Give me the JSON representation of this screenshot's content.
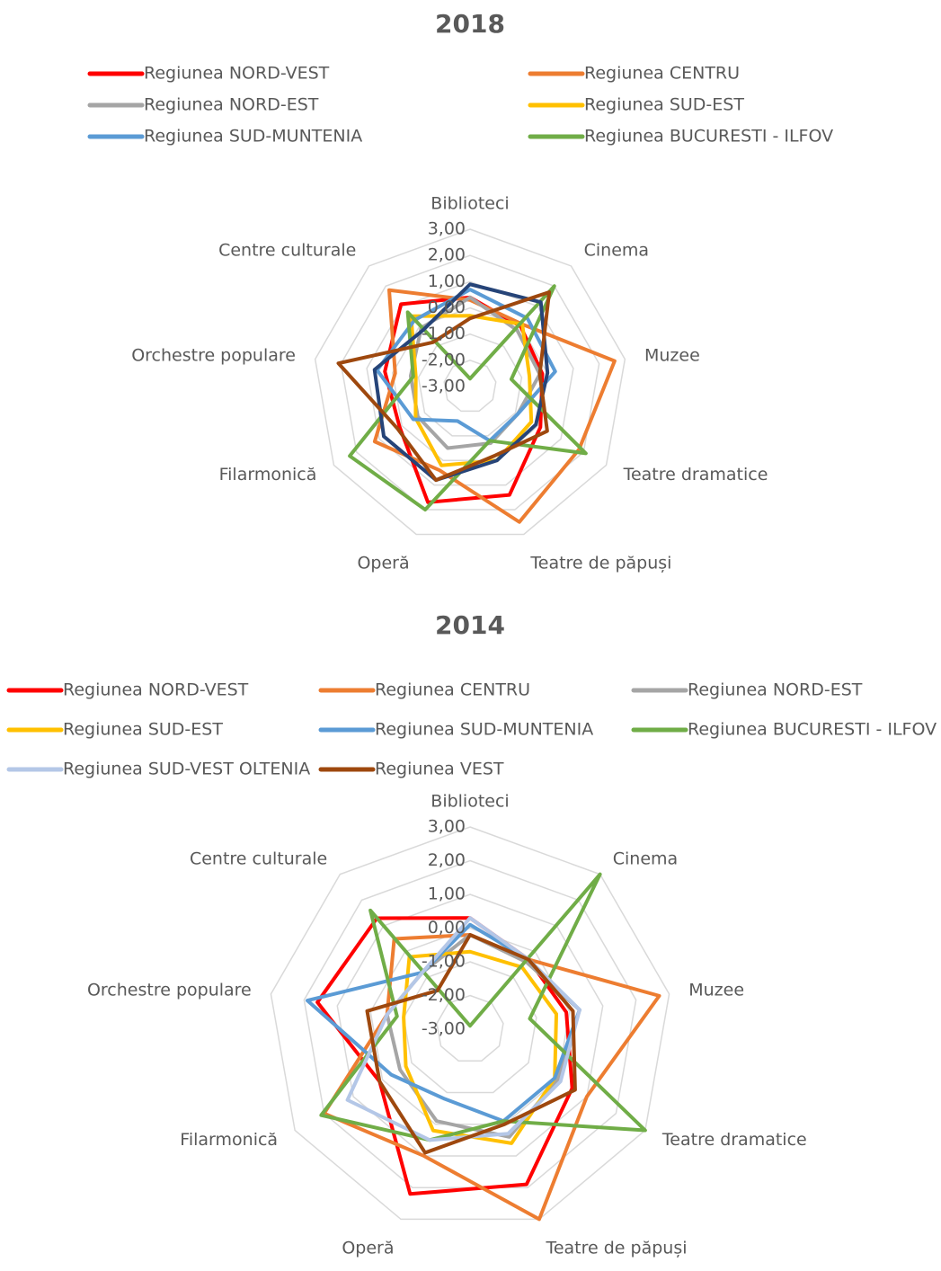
{
  "chart_data": [
    {
      "type": "radar",
      "title": "2018",
      "categories": [
        "Biblioteci",
        "Cinema",
        "Muzee",
        "Teatre dramatice",
        "Teatre de păpuși",
        "Operă",
        "Filarmonică",
        "Orchestre populare",
        "Centre culturale"
      ],
      "ylim": [
        -3,
        3
      ],
      "yticks": [
        {
          "value": 3,
          "label": "3,00"
        },
        {
          "value": 2,
          "label": "2,00"
        },
        {
          "value": 1,
          "label": "1,00"
        },
        {
          "value": 0,
          "label": "0,00"
        },
        {
          "value": -1,
          "label": "-1,00"
        },
        {
          "value": -2,
          "label": "-2,00"
        },
        {
          "value": -3,
          "label": "-3,00"
        }
      ],
      "series": [
        {
          "name": "Regiunea NORD-VEST",
          "color": "#ff0000",
          "values": [
            0.4,
            0,
            -0.2,
            0.1,
            1.4,
            1.7,
            0.1,
            0.3,
            1.1
          ]
        },
        {
          "name": "Regiunea CENTRU",
          "color": "#ed7d31",
          "values": [
            0.3,
            0.1,
            2.6,
            1.8,
            2.5,
            0.4,
            1.2,
            -0.1,
            1.8
          ]
        },
        {
          "name": "Regiunea NORD-EST",
          "color": "#a5a5a5",
          "values": [
            0.4,
            -0.2,
            -0.3,
            -0.9,
            -0.7,
            -0.5,
            -0.7,
            -0.7,
            -0.1
          ]
        },
        {
          "name": "Regiunea SUD-EST",
          "color": "#ffc000",
          "values": [
            -0.3,
            0.1,
            -0.7,
            -0.3,
            0,
            0.2,
            -0.6,
            -0.9,
            0.5
          ]
        },
        {
          "name": "Regiunea SUD-MUNTENIA",
          "color": "#5b9bd5",
          "values": [
            0.7,
            0.4,
            0.3,
            -0.9,
            -0.8,
            -1.6,
            -0.5,
            0.6,
            0.3
          ]
        },
        {
          "name": "Regiunea BUCURESTI - ILFOV",
          "color": "#70ad47",
          "values": [
            -2.7,
            2.0,
            -1.4,
            2.1,
            -0.8,
            2.0,
            2.3,
            -0.8,
            0.7
          ]
        },
        {
          "name": null,
          "color": "#264478",
          "values": [
            0.9,
            1.2,
            0,
            -0.1,
            0,
            0.8,
            0.8,
            0.7,
            -0.2
          ]
        },
        {
          "name": null,
          "color": "#9e480e",
          "values": [
            -0.4,
            1.7,
            -0.3,
            0.4,
            -0.2,
            0.8,
            0.2,
            2.1,
            -0.8
          ]
        }
      ]
    },
    {
      "type": "radar",
      "title": "2014",
      "categories": [
        "Biblioteci",
        "Cinema",
        "Muzee",
        "Teatre dramatice",
        "Teatre de păpuși",
        "Operă",
        "Filarmonică",
        "Orchestre populare",
        "Centre culturale"
      ],
      "ylim": [
        -3,
        3
      ],
      "yticks": [
        {
          "value": 3,
          "label": "3,00"
        },
        {
          "value": 2,
          "label": "2,00"
        },
        {
          "value": 1,
          "label": "1,00"
        },
        {
          "value": 0,
          "label": "0,00"
        },
        {
          "value": -1,
          "label": "-1,00"
        },
        {
          "value": -2,
          "label": "-2,00"
        },
        {
          "value": -3,
          "label": "-3,00"
        }
      ],
      "series": [
        {
          "name": "Regiunea NORD-VEST",
          "color": "#ff0000",
          "values": [
            0.3,
            -0.3,
            -0.1,
            0.5,
            1.9,
            2.2,
            0.1,
            1.6,
            1.3
          ]
        },
        {
          "name": "Regiunea CENTRU",
          "color": "#ed7d31",
          "values": [
            -0.2,
            -0.3,
            2.7,
            1.0,
            3.0,
            1.0,
            2.0,
            -0.5,
            0.5
          ]
        },
        {
          "name": "Regiunea NORD-EST",
          "color": "#a5a5a5",
          "values": [
            -0.2,
            -0.4,
            0.3,
            0,
            0.4,
            -0.1,
            -0.6,
            -0.5,
            -0.8
          ]
        },
        {
          "name": "Regiunea SUD-EST",
          "color": "#ffc000",
          "values": [
            -0.7,
            -0.6,
            -0.4,
            -0.1,
            0.6,
            0.2,
            -0.8,
            -1.0,
            -0.2
          ]
        },
        {
          "name": "Regiunea SUD-MUNTENIA",
          "color": "#5b9bd5",
          "values": [
            0.1,
            -0.3,
            0.3,
            -0.1,
            -0.1,
            -0.8,
            -0.3,
            1.9,
            -0.8
          ]
        },
        {
          "name": "Regiunea BUCURESTI - ILFOV",
          "color": "#70ad47",
          "values": [
            -2.9,
            3.0,
            -1.2,
            3.0,
            -0.1,
            0.5,
            2.1,
            -0.8,
            1.6
          ]
        },
        {
          "name": "Regiunea SUD-VEST OLTENIA",
          "color": "#b4c7e7",
          "values": [
            0.3,
            -0.3,
            0.3,
            0.1,
            0.3,
            0.5,
            1.2,
            -0.5,
            -0.8
          ]
        },
        {
          "name": "Regiunea VEST",
          "color": "#9e480e",
          "values": [
            -0.2,
            -0.3,
            0.1,
            0.6,
            0,
            0.9,
            0.1,
            0.1,
            -1.5
          ]
        }
      ]
    }
  ]
}
